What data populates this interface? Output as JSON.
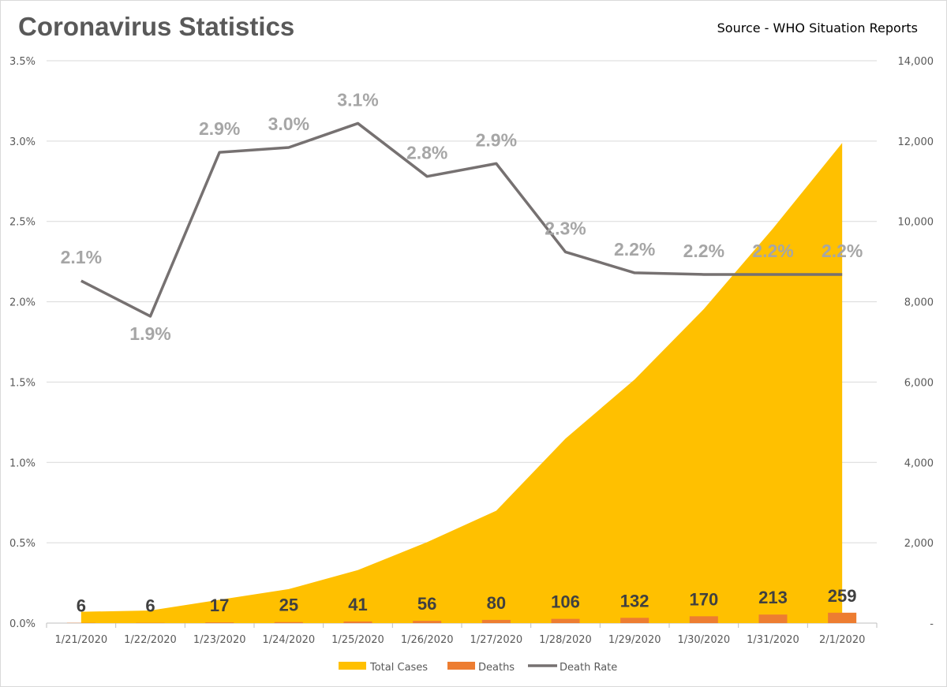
{
  "title": "Coronavirus Statistics",
  "source": "Source - WHO Situation Reports",
  "colors": {
    "total_cases": "#ffc000",
    "deaths": "#ed7d31",
    "death_rate": "#767171",
    "rate_label": "#a6a6a6",
    "grid": "#d9d9d9"
  },
  "chart_data": {
    "type": "area",
    "categories": [
      "1/21/2020",
      "1/22/2020",
      "1/23/2020",
      "1/24/2020",
      "1/25/2020",
      "1/26/2020",
      "1/27/2020",
      "1/28/2020",
      "1/29/2020",
      "1/30/2020",
      "1/31/2020",
      "2/1/2020"
    ],
    "series": [
      {
        "name": "Total Cases",
        "type": "area",
        "axis": "right",
        "values": [
          282,
          314,
          581,
          846,
          1320,
          2014,
          2798,
          4593,
          6065,
          7818,
          9826,
          11953
        ]
      },
      {
        "name": "Deaths",
        "type": "bar",
        "axis": "right",
        "values": [
          6,
          6,
          17,
          25,
          41,
          56,
          80,
          106,
          132,
          170,
          213,
          259
        ],
        "data_labels": [
          "6",
          "6",
          "17",
          "25",
          "41",
          "56",
          "80",
          "106",
          "132",
          "170",
          "213",
          "259"
        ]
      },
      {
        "name": "Death Rate",
        "type": "line",
        "axis": "left",
        "values": [
          2.13,
          1.91,
          2.93,
          2.96,
          3.11,
          2.78,
          2.86,
          2.31,
          2.18,
          2.17,
          2.17,
          2.17
        ],
        "data_labels": [
          "2.1%",
          "1.9%",
          "2.9%",
          "3.0%",
          "3.1%",
          "2.8%",
          "2.9%",
          "2.3%",
          "2.2%",
          "2.2%",
          "2.2%",
          "2.2%"
        ]
      }
    ],
    "left_axis": {
      "ylim": [
        0,
        3.5
      ],
      "ticks": [
        "0.0%",
        "0.5%",
        "1.0%",
        "1.5%",
        "2.0%",
        "2.5%",
        "3.0%",
        "3.5%"
      ]
    },
    "right_axis": {
      "ylim": [
        0,
        14000
      ],
      "ticks": [
        "-",
        "2,000",
        "4,000",
        "6,000",
        "8,000",
        "10,000",
        "12,000",
        "14,000"
      ]
    },
    "grid": true,
    "legend": {
      "position": "bottom",
      "entries": [
        "Total Cases",
        "Deaths",
        "Death Rate"
      ]
    }
  }
}
